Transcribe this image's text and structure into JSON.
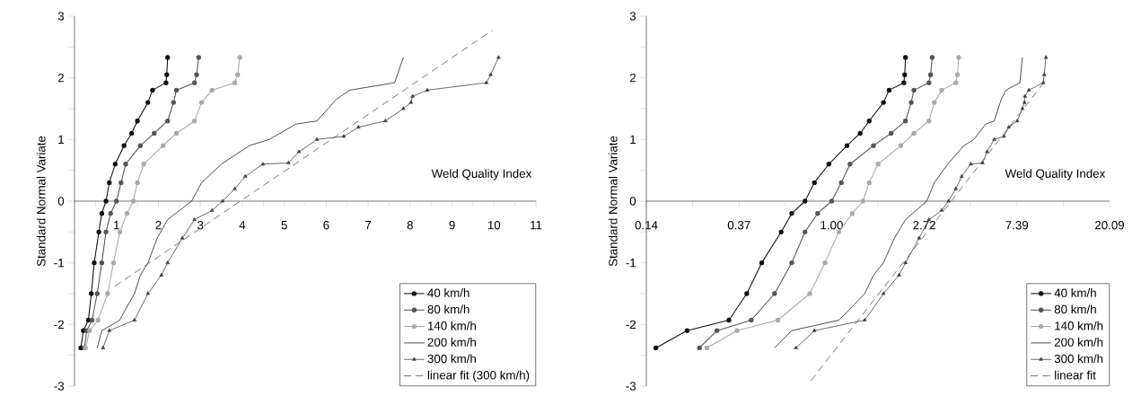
{
  "chart_data": [
    {
      "type": "line",
      "xlabel": "Weld Quality Index",
      "ylabel": "Standard Normal Variate",
      "xlim": [
        0,
        11
      ],
      "ylim": [
        -3,
        3
      ],
      "xticks": [
        {
          "value": 0.5,
          "label": null
        },
        1,
        {
          "value": 1.5,
          "label": null
        },
        2,
        {
          "value": 2.5,
          "label": null
        },
        3,
        {
          "value": 3.5,
          "label": null
        },
        4,
        {
          "value": 4.5,
          "label": null
        },
        5,
        {
          "value": 5.5,
          "label": null
        },
        6,
        {
          "value": 6.5,
          "label": null
        },
        7,
        {
          "value": 7.5,
          "label": null
        },
        8,
        {
          "value": 8.5,
          "label": null
        },
        9,
        {
          "value": 9.5,
          "label": null
        },
        10,
        {
          "value": 10.5,
          "label": null
        },
        11
      ],
      "yticks": [
        -3,
        {
          "value": -2.5,
          "label": null
        },
        -2,
        {
          "value": -1.5,
          "label": null
        },
        -1,
        {
          "value": -0.5,
          "label": null
        },
        0,
        {
          "value": 0.5,
          "label": null
        },
        1,
        {
          "value": 1.5,
          "label": null
        },
        2,
        {
          "value": 2.5,
          "label": null
        },
        3
      ],
      "legend": "bottom right",
      "series": [
        {
          "name": "40 km/h",
          "color": "#111111",
          "marker": "circle",
          "x": [
            0.15,
            0.21,
            0.33,
            0.4,
            0.47,
            0.58,
            0.65,
            0.75,
            0.83,
            0.97,
            1.18,
            1.36,
            1.5,
            1.75,
            1.86,
            2.18,
            2.2,
            2.22
          ],
          "values": [
            -2.38,
            -2.1,
            -1.93,
            -1.5,
            -1.0,
            -0.5,
            -0.2,
            0,
            0.3,
            0.6,
            0.9,
            1.1,
            1.3,
            1.6,
            1.8,
            1.92,
            2.05,
            2.33
          ]
        },
        {
          "name": "80 km/h",
          "color": "#555555",
          "marker": "circle",
          "x": [
            0.24,
            0.29,
            0.42,
            0.54,
            0.65,
            0.75,
            0.86,
            1.0,
            1.11,
            1.22,
            1.57,
            1.9,
            2.22,
            2.36,
            2.43,
            2.86,
            2.91,
            2.96
          ],
          "values": [
            -2.38,
            -2.1,
            -1.93,
            -1.5,
            -1.0,
            -0.5,
            -0.2,
            0,
            0.3,
            0.6,
            0.9,
            1.1,
            1.3,
            1.6,
            1.8,
            1.92,
            2.05,
            2.33
          ]
        },
        {
          "name": "140 km/h",
          "color": "#aaaaaa",
          "marker": "circle",
          "x": [
            0.26,
            0.36,
            0.56,
            0.79,
            0.93,
            1.08,
            1.25,
            1.4,
            1.5,
            1.65,
            2.11,
            2.43,
            2.86,
            3.03,
            3.28,
            3.82,
            3.89,
            3.94
          ],
          "values": [
            -2.38,
            -2.1,
            -1.93,
            -1.5,
            -1.0,
            -0.5,
            -0.2,
            0,
            0.3,
            0.6,
            0.9,
            1.1,
            1.3,
            1.6,
            1.8,
            1.92,
            2.05,
            2.33
          ]
        },
        {
          "name": "200 km/h",
          "color": "#222222",
          "marker": "none",
          "x": [
            0.54,
            0.65,
            1.08,
            1.18,
            1.43,
            1.57,
            1.75,
            1.97,
            2.22,
            2.79,
            3.03,
            3.5,
            4.17,
            4.64,
            5.28,
            5.78,
            6.24,
            6.56,
            7.63,
            7.84
          ],
          "values": [
            -2.38,
            -2.1,
            -1.93,
            -1.8,
            -1.5,
            -1.2,
            -1.0,
            -0.6,
            -0.3,
            0,
            0.3,
            0.6,
            0.9,
            1.0,
            1.25,
            1.3,
            1.65,
            1.8,
            1.92,
            2.33
          ]
        },
        {
          "name": "300 km/h",
          "color": "#444444",
          "marker": "triangle",
          "x": [
            0.68,
            0.83,
            1.43,
            1.75,
            2.07,
            2.22,
            2.57,
            2.86,
            3.28,
            3.53,
            3.82,
            4.07,
            4.49,
            5.1,
            5.35,
            5.78,
            6.42,
            6.77,
            7.41,
            7.84,
            8.02,
            8.06,
            8.41,
            9.82,
            9.92,
            10.11
          ],
          "values": [
            -2.38,
            -2.1,
            -1.93,
            -1.5,
            -1.2,
            -1.0,
            -0.6,
            -0.3,
            -0.15,
            0,
            0.2,
            0.4,
            0.6,
            0.62,
            0.8,
            1.0,
            1.05,
            1.2,
            1.3,
            1.5,
            1.6,
            1.7,
            1.8,
            1.92,
            2.05,
            2.33
          ]
        },
        {
          "name": "linear fit (300 km/h)",
          "color": "#555555",
          "marker": "none",
          "line_style": "dashed",
          "x": [
            0.96,
            9.96
          ],
          "values": [
            -1.38,
            2.77
          ]
        }
      ]
    },
    {
      "type": "line",
      "log": "x",
      "xlabel": "Weld Quality Index",
      "ylabel": "Standard Normal Variate",
      "xlim": [
        0.1353,
        20.09
      ],
      "ylim": [
        -3,
        3
      ],
      "xticks": [
        {
          "value": 0.1353,
          "label": "0.14"
        },
        {
          "value": 0.2231,
          "label": null
        },
        {
          "value": 0.3679,
          "label": "0.37"
        },
        {
          "value": 0.6065,
          "label": null
        },
        {
          "value": 1,
          "label": "1.00"
        },
        {
          "value": 1.6487,
          "label": null
        },
        {
          "value": 2.7183,
          "label": "2.72"
        },
        {
          "value": 4.4817,
          "label": null
        },
        {
          "value": 7.3891,
          "label": "7.39"
        },
        {
          "value": 12.1825,
          "label": null
        },
        {
          "value": 20.09,
          "label": "20.09"
        }
      ],
      "yticks": [
        -3,
        {
          "value": -2.5,
          "label": null
        },
        -2,
        {
          "value": -1.5,
          "label": null
        },
        -1,
        {
          "value": -0.5,
          "label": null
        },
        0,
        {
          "value": 0.5,
          "label": null
        },
        1,
        {
          "value": 1.5,
          "label": null
        },
        2,
        {
          "value": 2.5,
          "label": null
        },
        3
      ],
      "legend": "bottom right",
      "series": [
        {
          "name": "40 km/h",
          "color": "#111111",
          "marker": "circle",
          "x": [
            0.15,
            0.21,
            0.33,
            0.4,
            0.47,
            0.58,
            0.65,
            0.75,
            0.83,
            0.97,
            1.18,
            1.36,
            1.5,
            1.75,
            1.86,
            2.18,
            2.2,
            2.22
          ],
          "values": [
            -2.38,
            -2.1,
            -1.93,
            -1.5,
            -1.0,
            -0.5,
            -0.2,
            0,
            0.3,
            0.6,
            0.9,
            1.1,
            1.3,
            1.6,
            1.8,
            1.92,
            2.05,
            2.33
          ]
        },
        {
          "name": "80 km/h",
          "color": "#555555",
          "marker": "circle",
          "x": [
            0.24,
            0.29,
            0.42,
            0.54,
            0.65,
            0.75,
            0.86,
            1.0,
            1.11,
            1.22,
            1.57,
            1.9,
            2.22,
            2.36,
            2.43,
            2.86,
            2.91,
            2.96
          ],
          "values": [
            -2.38,
            -2.1,
            -1.93,
            -1.5,
            -1.0,
            -0.5,
            -0.2,
            0,
            0.3,
            0.6,
            0.9,
            1.1,
            1.3,
            1.6,
            1.8,
            1.92,
            2.05,
            2.33
          ]
        },
        {
          "name": "140 km/h",
          "color": "#aaaaaa",
          "marker": "circle",
          "x": [
            0.26,
            0.36,
            0.56,
            0.79,
            0.93,
            1.08,
            1.25,
            1.4,
            1.5,
            1.65,
            2.11,
            2.43,
            2.86,
            3.03,
            3.28,
            3.82,
            3.89,
            3.94
          ],
          "values": [
            -2.38,
            -2.1,
            -1.93,
            -1.5,
            -1.0,
            -0.5,
            -0.2,
            0,
            0.3,
            0.6,
            0.9,
            1.1,
            1.3,
            1.6,
            1.8,
            1.92,
            2.05,
            2.33
          ]
        },
        {
          "name": "200 km/h",
          "color": "#222222",
          "marker": "none",
          "x": [
            0.54,
            0.65,
            1.08,
            1.18,
            1.43,
            1.57,
            1.75,
            1.97,
            2.22,
            2.79,
            3.03,
            3.5,
            4.17,
            4.64,
            5.28,
            5.78,
            6.24,
            6.56,
            7.63,
            7.84
          ],
          "values": [
            -2.38,
            -2.1,
            -1.93,
            -1.8,
            -1.5,
            -1.2,
            -1.0,
            -0.6,
            -0.3,
            0,
            0.3,
            0.6,
            0.9,
            1.0,
            1.25,
            1.3,
            1.65,
            1.8,
            1.92,
            2.33
          ]
        },
        {
          "name": "300 km/h",
          "color": "#444444",
          "marker": "triangle",
          "x": [
            0.68,
            0.83,
            1.43,
            1.75,
            2.07,
            2.22,
            2.57,
            2.86,
            3.28,
            3.53,
            3.82,
            4.07,
            4.49,
            5.1,
            5.35,
            5.78,
            6.42,
            6.77,
            7.41,
            7.84,
            8.02,
            8.06,
            8.41,
            9.82,
            9.92,
            10.11
          ],
          "values": [
            -2.38,
            -2.1,
            -1.93,
            -1.5,
            -1.2,
            -1.0,
            -0.6,
            -0.3,
            -0.15,
            0,
            0.2,
            0.4,
            0.6,
            0.62,
            0.8,
            1.0,
            1.05,
            1.2,
            1.3,
            1.5,
            1.6,
            1.7,
            1.8,
            1.92,
            2.05,
            2.33
          ]
        },
        {
          "name": "linear fit",
          "color": "#555555",
          "marker": "none",
          "line_style": "dashed",
          "x": [
            0.8,
            9.97
          ],
          "values": [
            -2.91,
            1.94
          ]
        }
      ]
    }
  ]
}
